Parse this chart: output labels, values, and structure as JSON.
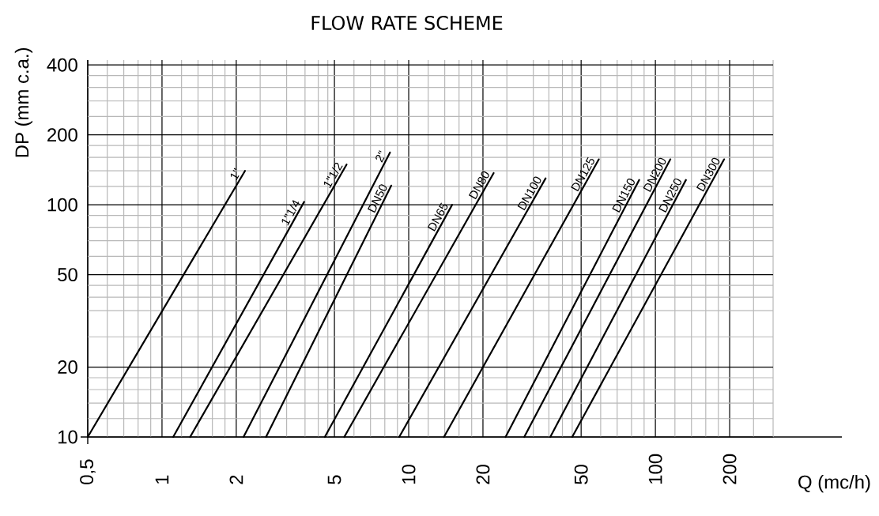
{
  "chart_data": {
    "type": "line",
    "title": "FLOW RATE SCHEME",
    "xlabel": "Q (mc/h)",
    "ylabel": "DP (mm c.a.)",
    "log": "xy",
    "grid": true,
    "xlim": [
      0.5,
      570
    ],
    "ylim": [
      10,
      420
    ],
    "xticks": [
      {
        "value": 0.5,
        "label": "0,5"
      },
      {
        "value": 0.6,
        "label": null
      },
      {
        "value": 0.7,
        "label": null
      },
      {
        "value": 0.8,
        "label": null
      },
      {
        "value": 0.9,
        "label": null
      },
      1,
      {
        "value": 1.2,
        "label": null
      },
      {
        "value": 1.4,
        "label": null
      },
      {
        "value": 1.6,
        "label": null
      },
      {
        "value": 1.8,
        "label": null
      },
      2,
      {
        "value": 2.5,
        "label": null
      },
      {
        "value": 3.2,
        "label": null
      },
      {
        "value": 3.8,
        "label": null
      },
      {
        "value": 4.3,
        "label": null
      },
      {
        "value": 4.7,
        "label": null
      },
      5,
      {
        "value": 6,
        "label": null
      },
      {
        "value": 7,
        "label": null
      },
      {
        "value": 8,
        "label": null
      },
      {
        "value": 9,
        "label": null
      },
      10,
      {
        "value": 12,
        "label": null
      },
      {
        "value": 14,
        "label": null
      },
      {
        "value": 16,
        "label": null
      },
      {
        "value": 18,
        "label": null
      },
      20,
      {
        "value": 25,
        "label": null
      },
      {
        "value": 32,
        "label": null
      },
      {
        "value": 37,
        "label": null
      },
      {
        "value": 42,
        "label": null
      },
      {
        "value": 46,
        "label": null
      },
      50,
      {
        "value": 60,
        "label": null
      },
      {
        "value": 70,
        "label": null
      },
      {
        "value": 80,
        "label": null
      },
      {
        "value": 90,
        "label": null
      },
      100,
      {
        "value": 120,
        "label": null
      },
      {
        "value": 140,
        "label": null
      },
      {
        "value": 160,
        "label": null
      },
      {
        "value": 180,
        "label": null
      },
      200,
      {
        "value": 250,
        "label": null
      },
      {
        "value": 300,
        "label": null
      }
    ],
    "yticks": [
      10,
      {
        "value": 12,
        "label": null
      },
      {
        "value": 14,
        "label": null
      },
      {
        "value": 16,
        "label": null
      },
      {
        "value": 18,
        "label": null
      },
      20,
      {
        "value": 27,
        "label": null
      },
      {
        "value": 35,
        "label": null
      },
      {
        "value": 40,
        "label": null
      },
      {
        "value": 45,
        "label": null
      },
      50,
      {
        "value": 60,
        "label": null
      },
      {
        "value": 70,
        "label": null
      },
      {
        "value": 80,
        "label": null
      },
      {
        "value": 90,
        "label": null
      },
      100,
      {
        "value": 120,
        "label": null
      },
      {
        "value": 140,
        "label": null
      },
      {
        "value": 160,
        "label": null
      },
      {
        "value": 180,
        "label": null
      },
      200,
      {
        "value": 240,
        "label": null
      },
      {
        "value": 280,
        "label": null
      },
      {
        "value": 320,
        "label": null
      },
      {
        "value": 360,
        "label": null
      },
      400
    ],
    "series": [
      {
        "name": "1\"",
        "color": "#000000",
        "x": [
          0.5,
          2.17
        ],
        "values": [
          10,
          140
        ]
      },
      {
        "name": "1\"1/4",
        "color": "#000000",
        "x": [
          1.11,
          3.77
        ],
        "values": [
          10,
          103
        ]
      },
      {
        "name": "1\"1/2",
        "color": "#000000",
        "x": [
          1.3,
          5.6
        ],
        "values": [
          10,
          149
        ]
      },
      {
        "name": "2\"",
        "color": "#000000",
        "x": [
          2.14,
          8.4
        ],
        "values": [
          10,
          168
        ]
      },
      {
        "name": "DN50",
        "color": "#000000",
        "x": [
          2.64,
          8.5
        ],
        "values": [
          10,
          121
        ]
      },
      {
        "name": "DN65",
        "color": "#000000",
        "x": [
          4.57,
          15
        ],
        "values": [
          10,
          100
        ]
      },
      {
        "name": "DN80",
        "color": "#000000",
        "x": [
          5.48,
          22.1
        ],
        "values": [
          10,
          137
        ]
      },
      {
        "name": "DN100",
        "color": "#000000",
        "x": [
          9.15,
          35.9
        ],
        "values": [
          10,
          130
        ]
      },
      {
        "name": "DN125",
        "color": "#000000",
        "x": [
          13.9,
          59
        ],
        "values": [
          10,
          157
        ]
      },
      {
        "name": "DN150",
        "color": "#000000",
        "x": [
          24.7,
          86
        ],
        "values": [
          10,
          128
        ]
      },
      {
        "name": "DN200",
        "color": "#000000",
        "x": [
          29.4,
          115
        ],
        "values": [
          10,
          157
        ]
      },
      {
        "name": "DN250",
        "color": "#000000",
        "x": [
          37.5,
          133
        ],
        "values": [
          10,
          128
        ]
      },
      {
        "name": "DN300",
        "color": "#000000",
        "x": [
          46,
          190
        ],
        "values": [
          10,
          157
        ]
      }
    ]
  }
}
